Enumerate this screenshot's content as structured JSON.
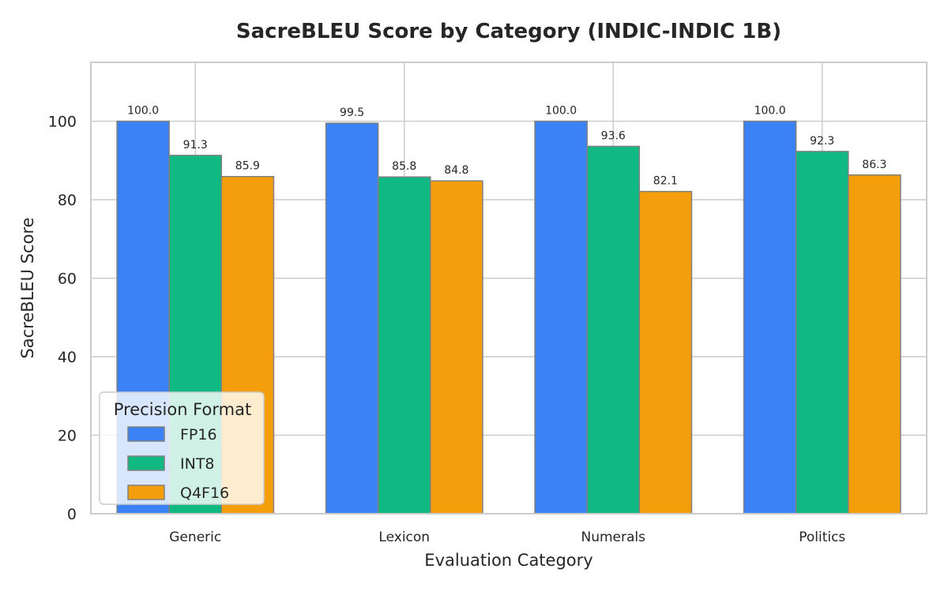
{
  "chart_data": {
    "type": "bar",
    "title": "SacreBLEU Score by Category (INDIC-INDIC 1B)",
    "xlabel": "Evaluation Category",
    "ylabel": "SacreBLEU Score",
    "categories": [
      "Generic",
      "Lexicon",
      "Numerals",
      "Politics"
    ],
    "series": [
      {
        "name": "FP16",
        "values": [
          100.0,
          99.5,
          100.0,
          100.0
        ],
        "color": "#3b82f6"
      },
      {
        "name": "INT8",
        "values": [
          91.3,
          85.8,
          93.6,
          92.3
        ],
        "color": "#10b981"
      },
      {
        "name": "Q4F16",
        "values": [
          85.9,
          84.8,
          82.1,
          86.3
        ],
        "color": "#f59e0b"
      }
    ],
    "data_labels": [
      [
        "100.0",
        "91.3",
        "85.9"
      ],
      [
        "99.5",
        "85.8",
        "84.8"
      ],
      [
        "100.0",
        "93.6",
        "82.1"
      ],
      [
        "100.0",
        "92.3",
        "86.3"
      ]
    ],
    "ylim": [
      0,
      115
    ],
    "yticks": [
      0,
      20,
      40,
      60,
      80,
      100
    ],
    "grid": true,
    "legend": {
      "title": "Precision Format",
      "placement": "lower-left"
    },
    "bar_edge_color": "#808080",
    "grid_color": "#cccccc"
  }
}
